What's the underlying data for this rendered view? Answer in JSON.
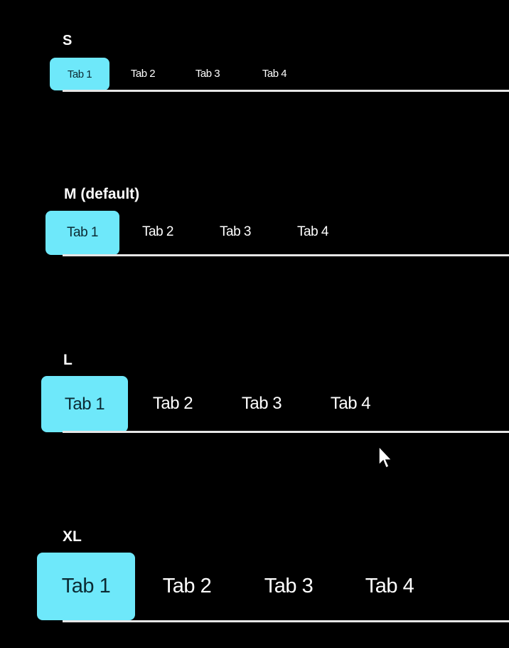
{
  "accent_color": "#6ee8fa",
  "groups": [
    {
      "label": "S",
      "tabs": [
        "Tab 1",
        "Tab 2",
        "Tab 3",
        "Tab 4"
      ],
      "selected": 0
    },
    {
      "label": "M (default)",
      "tabs": [
        "Tab 1",
        "Tab 2",
        "Tab 3",
        "Tab 4"
      ],
      "selected": 0
    },
    {
      "label": "L",
      "tabs": [
        "Tab 1",
        "Tab 2",
        "Tab 3",
        "Tab 4"
      ],
      "selected": 0
    },
    {
      "label": "XL",
      "tabs": [
        "Tab 1",
        "Tab 2",
        "Tab 3",
        "Tab 4"
      ],
      "selected": 0
    }
  ],
  "cursor_icon": "mouse-pointer-icon"
}
